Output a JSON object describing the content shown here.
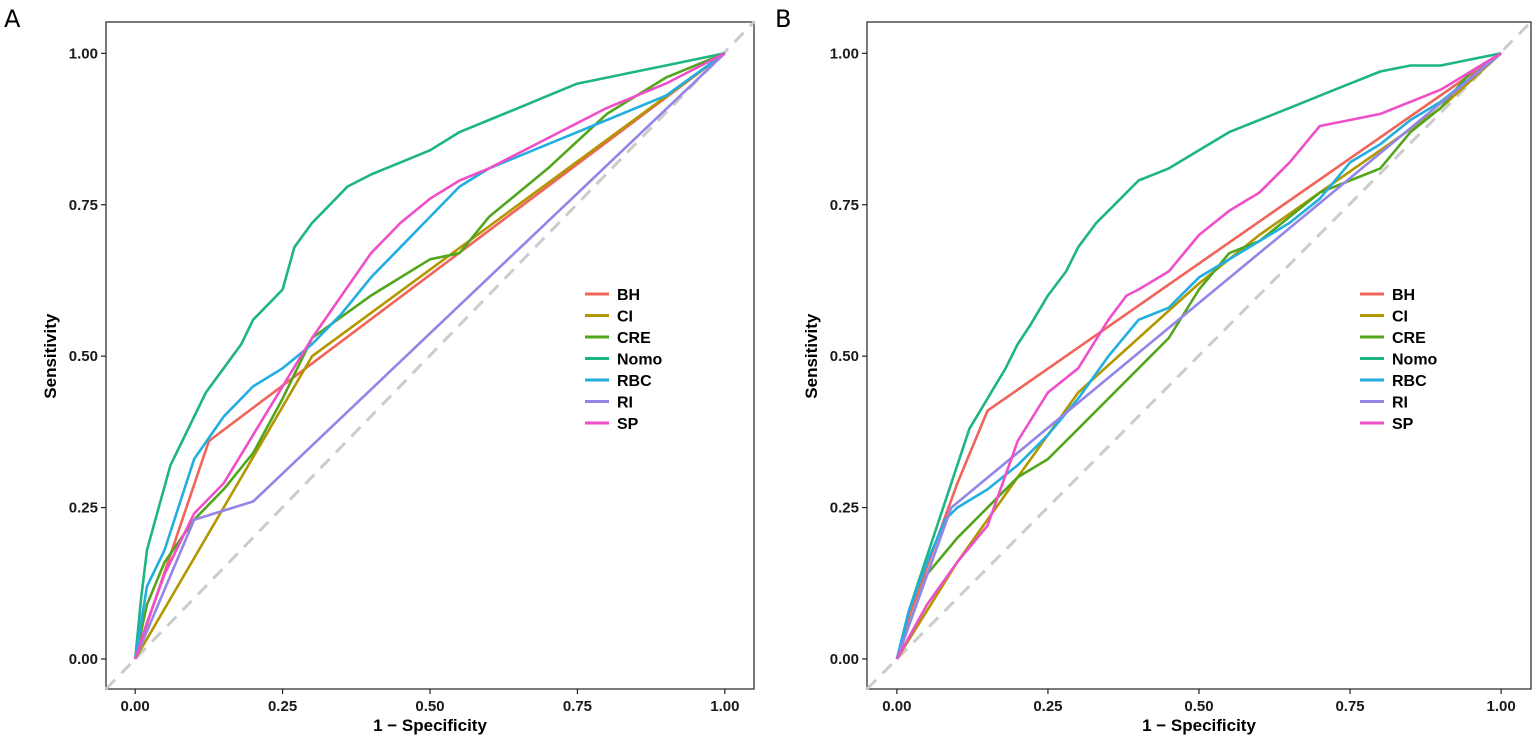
{
  "chart_data": [
    {
      "panel": "A",
      "type": "line",
      "xlabel": "1 − Specificity",
      "ylabel": "Sensitivity",
      "xlim": [
        0,
        1
      ],
      "ylim": [
        0,
        1
      ],
      "x_ticks": [
        "0.00",
        "0.25",
        "0.50",
        "0.75",
        "1.00"
      ],
      "y_ticks": [
        "0.00",
        "0.25",
        "0.50",
        "0.75",
        "1.00"
      ],
      "grid": false,
      "legend_position": "right-center",
      "reference_line": {
        "style": "dashed",
        "color": "#cccccc",
        "from": [
          0,
          0
        ],
        "to": [
          1,
          1
        ]
      },
      "series": [
        {
          "name": "BH",
          "color": "#f0645a",
          "x": [
            0,
            0.125,
            1
          ],
          "y": [
            0,
            0.36,
            1
          ]
        },
        {
          "name": "CI",
          "color": "#b39700",
          "x": [
            0,
            0.3,
            1
          ],
          "y": [
            0,
            0.5,
            1
          ]
        },
        {
          "name": "CRE",
          "color": "#52a61c",
          "x": [
            0,
            0.02,
            0.05,
            0.1,
            0.15,
            0.2,
            0.25,
            0.3,
            0.4,
            0.5,
            0.55,
            0.6,
            0.7,
            0.8,
            0.9,
            1
          ],
          "y": [
            0,
            0.09,
            0.16,
            0.23,
            0.28,
            0.34,
            0.43,
            0.53,
            0.6,
            0.66,
            0.67,
            0.73,
            0.81,
            0.9,
            0.96,
            1
          ]
        },
        {
          "name": "Nomo",
          "color": "#1db584",
          "x": [
            0,
            0.01,
            0.02,
            0.04,
            0.06,
            0.08,
            0.1,
            0.12,
            0.15,
            0.18,
            0.2,
            0.23,
            0.25,
            0.27,
            0.3,
            0.33,
            0.36,
            0.4,
            0.45,
            0.5,
            0.55,
            0.6,
            0.65,
            0.7,
            0.75,
            0.8,
            0.85,
            0.9,
            0.95,
            1
          ],
          "y": [
            0,
            0.1,
            0.18,
            0.25,
            0.32,
            0.36,
            0.4,
            0.44,
            0.48,
            0.52,
            0.56,
            0.59,
            0.61,
            0.68,
            0.72,
            0.75,
            0.78,
            0.8,
            0.82,
            0.84,
            0.87,
            0.89,
            0.91,
            0.93,
            0.95,
            0.96,
            0.97,
            0.98,
            0.99,
            1
          ]
        },
        {
          "name": "RBC",
          "color": "#22aee0",
          "x": [
            0,
            0.02,
            0.05,
            0.1,
            0.15,
            0.2,
            0.25,
            0.3,
            0.35,
            0.4,
            0.45,
            0.5,
            0.55,
            0.6,
            0.7,
            0.8,
            0.9,
            1
          ],
          "y": [
            0,
            0.12,
            0.18,
            0.33,
            0.4,
            0.45,
            0.48,
            0.52,
            0.57,
            0.63,
            0.68,
            0.73,
            0.78,
            0.81,
            0.85,
            0.89,
            0.93,
            1
          ]
        },
        {
          "name": "RI",
          "color": "#9386e6",
          "x": [
            0,
            0.1,
            0.2,
            1
          ],
          "y": [
            0,
            0.23,
            0.26,
            1
          ]
        },
        {
          "name": "SP",
          "color": "#ef4fc8",
          "x": [
            0,
            0.02,
            0.05,
            0.1,
            0.15,
            0.2,
            0.25,
            0.3,
            0.35,
            0.4,
            0.45,
            0.5,
            0.55,
            0.6,
            0.7,
            0.8,
            0.9,
            1
          ],
          "y": [
            0,
            0.06,
            0.14,
            0.24,
            0.29,
            0.37,
            0.45,
            0.53,
            0.6,
            0.67,
            0.72,
            0.76,
            0.79,
            0.81,
            0.86,
            0.91,
            0.95,
            1
          ]
        }
      ],
      "legend": [
        "BH",
        "CI",
        "CRE",
        "Nomo",
        "RBC",
        "RI",
        "SP"
      ]
    },
    {
      "panel": "B",
      "type": "line",
      "xlabel": "1 − Specificity",
      "ylabel": "Sensitivity",
      "xlim": [
        0,
        1
      ],
      "ylim": [
        0,
        1
      ],
      "x_ticks": [
        "0.00",
        "0.25",
        "0.50",
        "0.75",
        "1.00"
      ],
      "y_ticks": [
        "0.00",
        "0.25",
        "0.50",
        "0.75",
        "1.00"
      ],
      "grid": false,
      "legend_position": "right-center",
      "reference_line": {
        "style": "dashed",
        "color": "#cccccc",
        "from": [
          0,
          0
        ],
        "to": [
          1,
          1
        ]
      },
      "series": [
        {
          "name": "BH",
          "color": "#f0645a",
          "x": [
            0,
            0.02,
            0.06,
            0.1,
            0.15,
            1
          ],
          "y": [
            0,
            0.07,
            0.18,
            0.29,
            0.41,
            1
          ]
        },
        {
          "name": "CI",
          "color": "#b39700",
          "x": [
            0,
            0.1,
            0.2,
            0.3,
            0.4,
            0.5,
            0.6,
            0.7,
            0.8,
            0.9,
            1
          ],
          "y": [
            0,
            0.16,
            0.3,
            0.44,
            0.53,
            0.62,
            0.7,
            0.77,
            0.84,
            0.91,
            1
          ]
        },
        {
          "name": "CRE",
          "color": "#52a61c",
          "x": [
            0,
            0.05,
            0.1,
            0.15,
            0.2,
            0.25,
            0.3,
            0.35,
            0.4,
            0.45,
            0.5,
            0.55,
            0.6,
            0.65,
            0.7,
            0.75,
            0.8,
            0.85,
            0.9,
            0.95,
            1
          ],
          "y": [
            0,
            0.14,
            0.2,
            0.25,
            0.3,
            0.33,
            0.38,
            0.43,
            0.48,
            0.53,
            0.61,
            0.67,
            0.69,
            0.73,
            0.77,
            0.79,
            0.81,
            0.87,
            0.91,
            0.97,
            1
          ]
        },
        {
          "name": "Nomo",
          "color": "#1db584",
          "x": [
            0,
            0.02,
            0.04,
            0.06,
            0.08,
            0.1,
            0.12,
            0.15,
            0.18,
            0.2,
            0.22,
            0.25,
            0.28,
            0.3,
            0.33,
            0.36,
            0.4,
            0.45,
            0.5,
            0.55,
            0.6,
            0.65,
            0.7,
            0.75,
            0.8,
            0.85,
            0.9,
            0.95,
            1
          ],
          "y": [
            0,
            0.08,
            0.14,
            0.2,
            0.26,
            0.32,
            0.38,
            0.43,
            0.48,
            0.52,
            0.55,
            0.6,
            0.64,
            0.68,
            0.72,
            0.75,
            0.79,
            0.81,
            0.84,
            0.87,
            0.89,
            0.91,
            0.93,
            0.95,
            0.97,
            0.98,
            0.98,
            0.99,
            1
          ]
        },
        {
          "name": "RBC",
          "color": "#22aee0",
          "x": [
            0,
            0.02,
            0.05,
            0.08,
            0.1,
            0.15,
            0.2,
            0.25,
            0.3,
            0.35,
            0.4,
            0.45,
            0.5,
            0.55,
            0.6,
            0.65,
            0.7,
            0.75,
            0.8,
            0.85,
            0.9,
            0.95,
            1
          ],
          "y": [
            0,
            0.08,
            0.16,
            0.23,
            0.25,
            0.28,
            0.32,
            0.37,
            0.43,
            0.5,
            0.56,
            0.58,
            0.63,
            0.66,
            0.69,
            0.72,
            0.76,
            0.82,
            0.85,
            0.89,
            0.92,
            0.96,
            1
          ]
        },
        {
          "name": "RI",
          "color": "#9386e6",
          "x": [
            0,
            0.09,
            1
          ],
          "y": [
            0,
            0.25,
            1
          ]
        },
        {
          "name": "SP",
          "color": "#ef4fc8",
          "x": [
            0,
            0.05,
            0.1,
            0.15,
            0.2,
            0.25,
            0.3,
            0.35,
            0.38,
            0.4,
            0.45,
            0.5,
            0.55,
            0.6,
            0.65,
            0.7,
            0.75,
            0.8,
            0.85,
            0.9,
            0.95,
            1
          ],
          "y": [
            0,
            0.09,
            0.16,
            0.22,
            0.36,
            0.44,
            0.48,
            0.56,
            0.6,
            0.61,
            0.64,
            0.7,
            0.74,
            0.77,
            0.82,
            0.88,
            0.89,
            0.9,
            0.92,
            0.94,
            0.97,
            1
          ]
        }
      ],
      "legend": [
        "BH",
        "CI",
        "CRE",
        "Nomo",
        "RBC",
        "RI",
        "SP"
      ]
    }
  ]
}
